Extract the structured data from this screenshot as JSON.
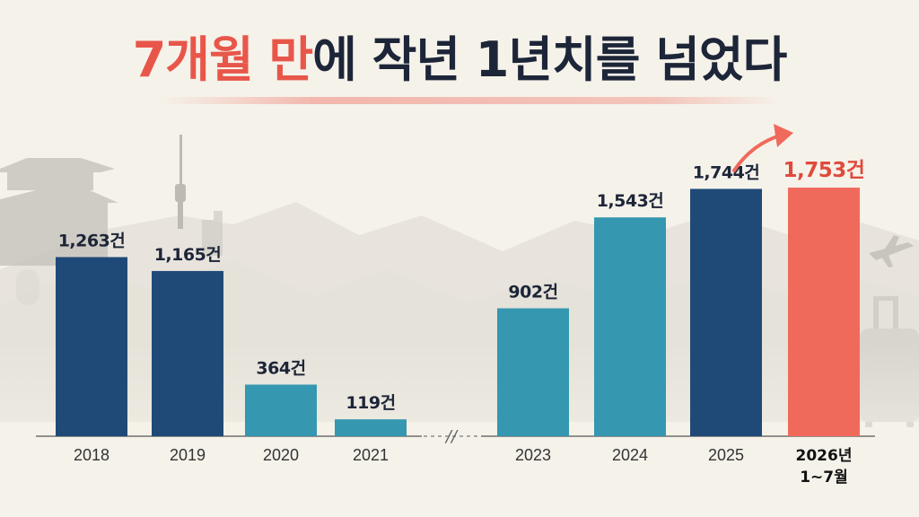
{
  "title": {
    "highlight": "7개월 만",
    "rest": "에 작년 1년치를 넘었다"
  },
  "colors": {
    "navy": "#1f4a78",
    "teal": "#3597b0",
    "highlight": "#f06a5c",
    "highlight_label": "#e04a3c",
    "title_dark": "#1d2538",
    "background": "#f5f2ea"
  },
  "chart_data": {
    "type": "bar",
    "title": "7개월 만에 작년 1년치를 넘었다",
    "xlabel": "",
    "ylabel": "",
    "ylim": [
      0,
      2000
    ],
    "grid": false,
    "axis_break": "2022",
    "unit": "건",
    "categories": [
      "2018",
      "2019",
      "2020",
      "2021",
      "2023",
      "2024",
      "2025",
      "2026년 1~7월"
    ],
    "values": [
      1263,
      1165,
      364,
      119,
      902,
      1543,
      1744,
      1753
    ],
    "value_labels": [
      "1,263건",
      "1,165건",
      "364건",
      "119건",
      "902건",
      "1,543건",
      "1,744건",
      "1,753건"
    ],
    "bar_colors": [
      "navy",
      "navy",
      "teal",
      "teal",
      "teal",
      "teal",
      "navy",
      "highlight"
    ],
    "break_marker": "//"
  }
}
